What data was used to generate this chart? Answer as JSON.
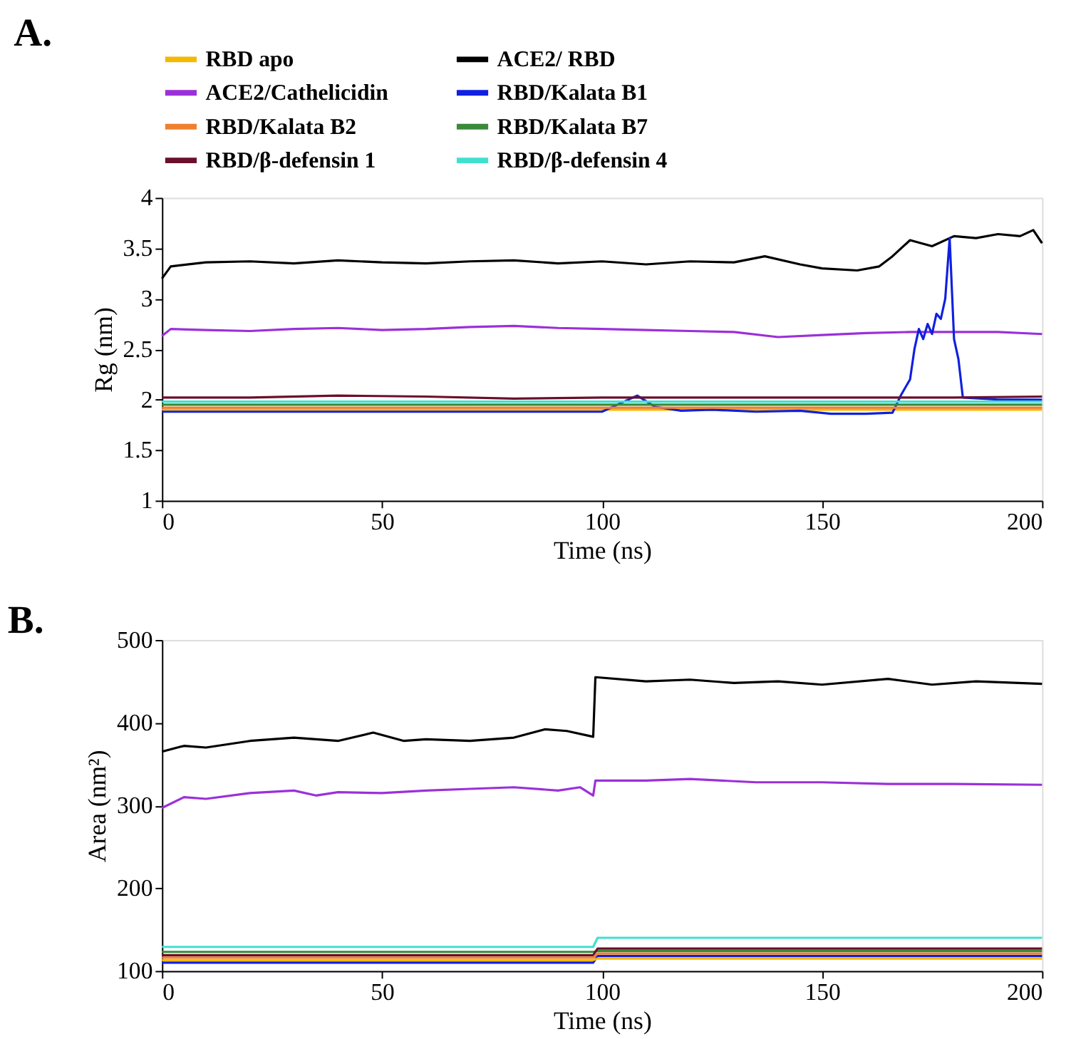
{
  "chart_data": [
    {
      "type": "line",
      "title": "A.",
      "xlabel": "Time (ns)",
      "ylabel": "Rg (nm)",
      "xlim": [
        0,
        200
      ],
      "ylim": [
        1,
        4
      ],
      "xticks": [
        0,
        50,
        100,
        150,
        200
      ],
      "yticks": [
        1,
        1.5,
        2,
        2.5,
        3,
        3.5,
        4
      ],
      "grid": false,
      "legend": "top",
      "line_style": "solid",
      "marker": "none",
      "series": [
        {
          "name": "RBD apo",
          "color": "#f5b800",
          "x": [
            0,
            20,
            40,
            60,
            80,
            100,
            120,
            140,
            160,
            180,
            200
          ],
          "values": [
            1.9,
            1.9,
            1.9,
            1.9,
            1.9,
            1.9,
            1.9,
            1.9,
            1.9,
            1.9,
            1.9
          ]
        },
        {
          "name": "ACE2/ RBD",
          "color": "#000000",
          "x": [
            0,
            2,
            10,
            20,
            30,
            40,
            50,
            60,
            70,
            80,
            90,
            100,
            110,
            120,
            130,
            137,
            145,
            150,
            158,
            163,
            166,
            170,
            175,
            180,
            185,
            190,
            195,
            198,
            200
          ],
          "values": [
            3.2,
            3.32,
            3.36,
            3.37,
            3.35,
            3.38,
            3.36,
            3.35,
            3.37,
            3.38,
            3.35,
            3.37,
            3.34,
            3.37,
            3.36,
            3.42,
            3.34,
            3.3,
            3.28,
            3.32,
            3.42,
            3.58,
            3.52,
            3.62,
            3.6,
            3.64,
            3.62,
            3.68,
            3.55
          ]
        },
        {
          "name": "ACE2/Cathelicidin",
          "color": "#9b30d9",
          "x": [
            0,
            2,
            10,
            20,
            30,
            40,
            50,
            60,
            70,
            80,
            90,
            100,
            110,
            120,
            130,
            140,
            150,
            160,
            170,
            180,
            190,
            200
          ],
          "values": [
            2.63,
            2.7,
            2.69,
            2.68,
            2.7,
            2.71,
            2.69,
            2.7,
            2.72,
            2.73,
            2.71,
            2.7,
            2.69,
            2.68,
            2.67,
            2.62,
            2.64,
            2.66,
            2.67,
            2.67,
            2.67,
            2.65
          ]
        },
        {
          "name": "RBD/Kalata B1",
          "color": "#1020e0",
          "x": [
            0,
            20,
            40,
            60,
            80,
            100,
            108,
            112,
            118,
            125,
            135,
            145,
            152,
            160,
            166,
            168,
            170,
            171,
            172,
            173,
            174,
            175,
            176,
            177,
            178,
            179,
            180,
            181,
            182,
            190,
            200
          ],
          "values": [
            1.88,
            1.88,
            1.88,
            1.88,
            1.88,
            1.88,
            2.04,
            1.93,
            1.89,
            1.9,
            1.88,
            1.89,
            1.86,
            1.86,
            1.87,
            2.05,
            2.2,
            2.5,
            2.7,
            2.6,
            2.75,
            2.65,
            2.85,
            2.8,
            3.0,
            3.6,
            2.6,
            2.4,
            2.02,
            2.0,
            2.0
          ]
        },
        {
          "name": "RBD/Kalata B2",
          "color": "#f08030",
          "x": [
            0,
            50,
            100,
            150,
            200
          ],
          "values": [
            1.92,
            1.92,
            1.92,
            1.92,
            1.92
          ]
        },
        {
          "name": "RBD/Kalata B7",
          "color": "#3a8a3a",
          "x": [
            0,
            20,
            40,
            60,
            80,
            100,
            120,
            140,
            160,
            180,
            200
          ],
          "values": [
            1.95,
            1.95,
            1.95,
            1.95,
            1.95,
            1.95,
            1.95,
            1.95,
            1.95,
            1.95,
            1.95
          ]
        },
        {
          "name": "RBD/β-defensin 1",
          "color": "#6b0f2a",
          "x": [
            0,
            20,
            40,
            60,
            80,
            100,
            120,
            140,
            160,
            180,
            200
          ],
          "values": [
            2.02,
            2.02,
            2.04,
            2.03,
            2.01,
            2.02,
            2.02,
            2.02,
            2.02,
            2.02,
            2.03
          ]
        },
        {
          "name": "RBD/β-defensin 4",
          "color": "#40e0d0",
          "x": [
            0,
            20,
            40,
            60,
            80,
            100,
            120,
            140,
            160,
            180,
            200
          ],
          "values": [
            1.98,
            1.98,
            1.98,
            1.98,
            1.98,
            1.98,
            1.98,
            1.98,
            1.98,
            1.98,
            1.98
          ]
        }
      ]
    },
    {
      "type": "line",
      "title": "B.",
      "xlabel": "Time (ns)",
      "ylabel": "Area (nm²)",
      "xlim": [
        0,
        200
      ],
      "ylim": [
        100,
        500
      ],
      "xticks": [
        0,
        50,
        100,
        150,
        200
      ],
      "yticks": [
        100,
        200,
        300,
        400,
        500
      ],
      "grid": false,
      "legend": false,
      "line_style": "solid",
      "marker": "none",
      "series": [
        {
          "color": "#000000",
          "x": [
            0,
            5,
            10,
            20,
            30,
            40,
            48,
            55,
            60,
            70,
            80,
            87,
            92,
            98,
            98.5,
            110,
            120,
            130,
            140,
            150,
            165,
            175,
            185,
            200
          ],
          "values": [
            365,
            372,
            370,
            378,
            382,
            378,
            388,
            378,
            380,
            378,
            382,
            392,
            390,
            383,
            455,
            450,
            452,
            448,
            450,
            446,
            453,
            446,
            450,
            447
          ]
        },
        {
          "color": "#9b30d9",
          "x": [
            0,
            5,
            10,
            20,
            30,
            35,
            40,
            50,
            60,
            70,
            80,
            90,
            95,
            98,
            98.5,
            110,
            120,
            135,
            150,
            165,
            180,
            200
          ],
          "values": [
            297,
            310,
            308,
            315,
            318,
            312,
            316,
            315,
            318,
            320,
            322,
            318,
            322,
            312,
            330,
            330,
            332,
            328,
            328,
            326,
            326,
            325
          ]
        },
        {
          "color": "#1020e0",
          "x": [
            0,
            25,
            50,
            75,
            98,
            99,
            150,
            200
          ],
          "values": [
            110,
            110,
            110,
            110,
            110,
            118,
            118,
            118
          ]
        },
        {
          "color": "#3a8a3a",
          "x": [
            0,
            25,
            50,
            75,
            98,
            99,
            150,
            200
          ],
          "values": [
            123,
            123,
            123,
            123,
            123,
            124,
            124,
            124
          ]
        },
        {
          "color": "#6b0f2a",
          "x": [
            0,
            25,
            50,
            75,
            98,
            99,
            150,
            200
          ],
          "values": [
            119,
            119,
            119,
            119,
            119,
            127,
            127,
            127
          ]
        },
        {
          "color": "#40e0d0",
          "x": [
            0,
            25,
            50,
            75,
            98,
            99,
            150,
            200
          ],
          "values": [
            129,
            129,
            129,
            129,
            129,
            140,
            140,
            140
          ]
        },
        {
          "color": "#f08030",
          "x": [
            0,
            25,
            50,
            75,
            98,
            99,
            150,
            200
          ],
          "values": [
            116,
            116,
            116,
            116,
            116,
            121,
            121,
            121
          ]
        },
        {
          "color": "#f5b800",
          "x": [
            0,
            25,
            50,
            75,
            98,
            99,
            150,
            200
          ],
          "values": [
            113,
            113,
            113,
            113,
            113,
            115,
            115,
            115
          ]
        }
      ]
    }
  ]
}
